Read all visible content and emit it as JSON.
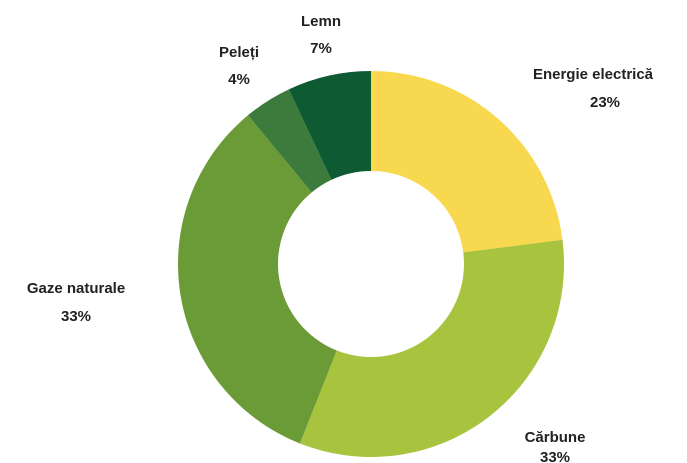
{
  "chart_data": {
    "type": "donut",
    "categories": [
      "Energie electrică",
      "Cărbune",
      "Gaze naturale",
      "Peleți",
      "Lemn"
    ],
    "values": [
      23,
      33,
      33,
      4,
      7
    ],
    "value_labels": [
      "23%",
      "33%",
      "33%",
      "4%",
      "7%"
    ],
    "colors": [
      "#f8d84e",
      "#a8c43e",
      "#6b9b37",
      "#3d7b3d",
      "#0e5a32"
    ]
  }
}
